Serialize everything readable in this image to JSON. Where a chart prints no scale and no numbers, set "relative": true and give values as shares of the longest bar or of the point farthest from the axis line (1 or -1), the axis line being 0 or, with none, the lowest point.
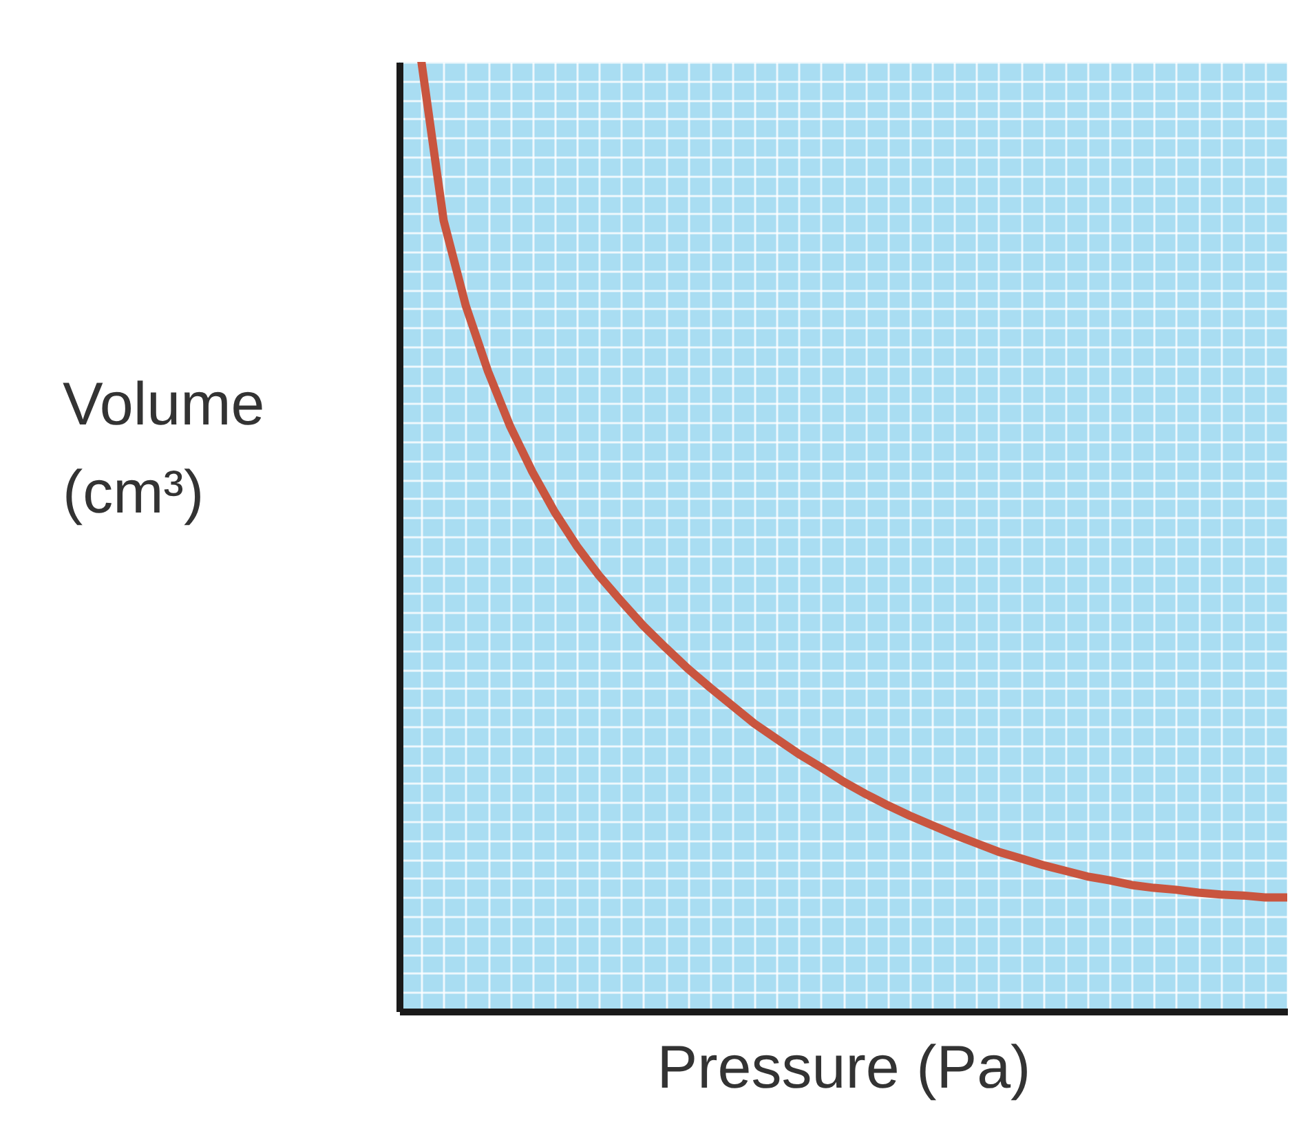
{
  "chart_data": {
    "type": "line",
    "relative": true,
    "xlabel": "Pressure (Pa)",
    "ylabel": "Volume (cm³)",
    "categories": [
      null,
      null,
      null,
      null,
      null,
      null,
      null,
      null,
      null,
      null,
      null,
      null,
      null,
      null,
      null,
      null,
      null,
      null,
      null,
      null,
      null,
      null,
      null,
      null,
      null,
      null,
      null,
      null,
      null,
      null,
      null,
      null,
      null,
      null,
      null,
      null,
      null,
      null,
      null,
      null
    ],
    "series": [
      {
        "color": "#c9553f",
        "values": [
          1,
          0.833,
          0.743,
          0.674,
          0.616,
          0.568,
          0.526,
          0.49,
          0.459,
          0.432,
          0.406,
          0.383,
          0.361,
          0.341,
          0.322,
          0.303,
          0.287,
          0.271,
          0.257,
          0.242,
          0.229,
          0.217,
          0.206,
          0.196,
          0.186,
          0.177,
          0.168,
          0.161,
          0.154,
          0.148,
          0.142,
          0.138,
          0.133,
          0.13,
          0.128,
          0.125,
          0.123,
          0.122,
          0.12,
          0.12
        ]
      }
    ],
    "grid": true,
    "marker": "none"
  }
}
